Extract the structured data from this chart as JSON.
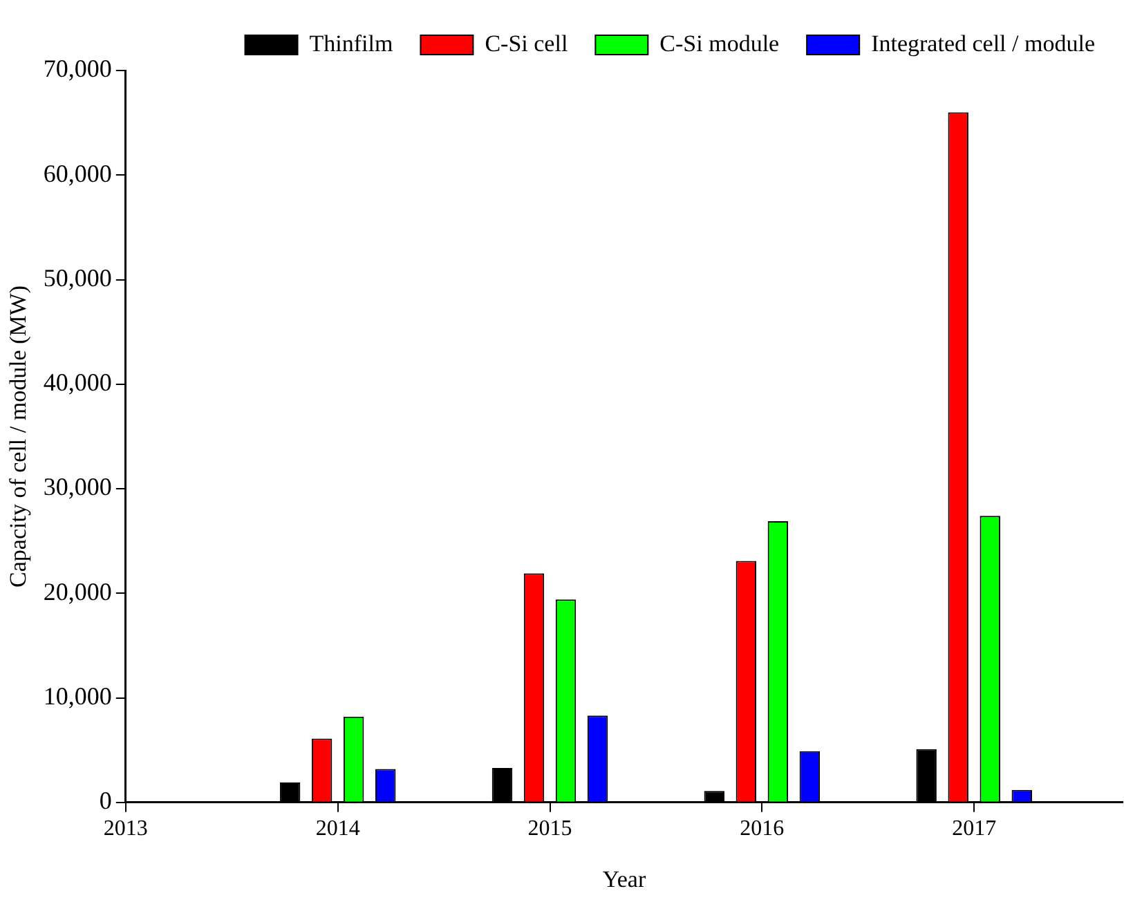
{
  "chart_data": {
    "type": "bar",
    "xlabel": "Year",
    "ylabel": "Capacity of cell / module (MW)",
    "x": [
      2014,
      2015,
      2016,
      2017
    ],
    "series": [
      {
        "name": "Thinfilm",
        "color": "#000000",
        "values": [
          1900,
          3300,
          1100,
          5100
        ]
      },
      {
        "name": "C-Si cell",
        "color": "#ff0000",
        "values": [
          6100,
          21900,
          23100,
          66000
        ]
      },
      {
        "name": "C-Si module",
        "color": "#00ff00",
        "values": [
          8200,
          19400,
          26900,
          27400
        ]
      },
      {
        "name": "Integrated cell / module",
        "color": "#0000ff",
        "values": [
          3200,
          8300,
          4900,
          1200
        ]
      }
    ],
    "xlim": [
      2013,
      2017.7
    ],
    "xticks": [
      2013,
      2014,
      2015,
      2016,
      2017
    ],
    "ylim": [
      0,
      70000
    ],
    "yticks": [
      {
        "value": 0,
        "label": "0"
      },
      {
        "value": 10000,
        "label": "10,000"
      },
      {
        "value": 20000,
        "label": "20,000"
      },
      {
        "value": 30000,
        "label": "30,000"
      },
      {
        "value": 40000,
        "label": "40,000"
      },
      {
        "value": 50000,
        "label": "50,000"
      },
      {
        "value": 60000,
        "label": "60,000"
      },
      {
        "value": 70000,
        "label": "70,000"
      }
    ],
    "grid": false,
    "legend": "top"
  }
}
